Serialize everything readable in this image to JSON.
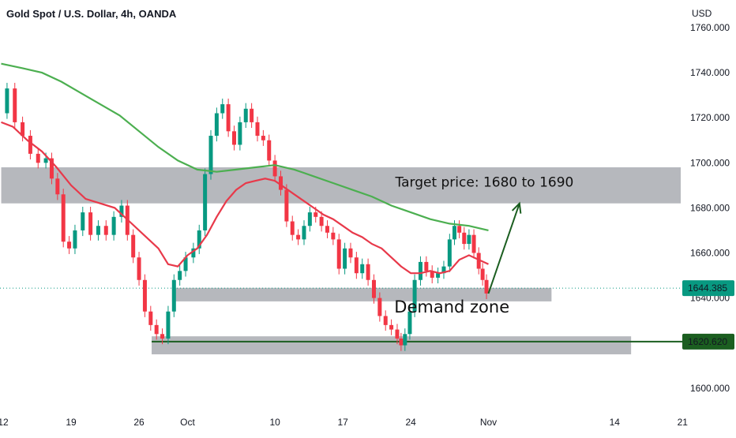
{
  "header": {
    "title": "Gold Spot / U.S. Dollar, 4h, OANDA"
  },
  "colors": {
    "up": "#089981",
    "down": "#f23645",
    "ma_fast": "#e8394a",
    "ma_slow": "#4caf50",
    "zone": "#a9acb1",
    "support": "#1b5e20",
    "last_price_tag": "#089981",
    "support_tag": "#1b5e20"
  },
  "chart_data": {
    "type": "line",
    "instrument": "Gold Spot / U.S. Dollar",
    "timeframe": "4h",
    "source": "OANDA",
    "currency_label": "USD",
    "ylim": [
      1590,
      1765
    ],
    "y_ticks": [
      1760,
      1740,
      1720,
      1700,
      1680,
      1660,
      1640,
      1600
    ],
    "y_tick_labels": [
      "1760.000",
      "1740.000",
      "1720.000",
      "1700.000",
      "1680.000",
      "1660.000",
      "1640.000",
      "1600.000"
    ],
    "x_ticks": [
      {
        "label": "12",
        "day": 12
      },
      {
        "label": "19",
        "day": 19
      },
      {
        "label": "26",
        "day": 26
      },
      {
        "label": "Oct",
        "day": 31
      },
      {
        "label": "10",
        "day": 40
      },
      {
        "label": "17",
        "day": 47
      },
      {
        "label": "24",
        "day": 54
      },
      {
        "label": "Nov",
        "day": 62
      },
      {
        "label": "14",
        "day": 75
      },
      {
        "label": "21",
        "day": 82
      }
    ],
    "x_range_days": [
      12,
      82
    ],
    "price_series": {
      "name": "Price",
      "points": [
        [
          11.8,
          1722
        ],
        [
          12.4,
          1733
        ],
        [
          13.2,
          1718
        ],
        [
          14.0,
          1712
        ],
        [
          14.8,
          1704
        ],
        [
          15.6,
          1700
        ],
        [
          16.4,
          1702
        ],
        [
          17.0,
          1693
        ],
        [
          17.6,
          1686
        ],
        [
          18.2,
          1665
        ],
        [
          18.8,
          1662
        ],
        [
          19.4,
          1670
        ],
        [
          20.2,
          1678
        ],
        [
          21.0,
          1668
        ],
        [
          21.8,
          1672
        ],
        [
          22.6,
          1668
        ],
        [
          23.4,
          1676
        ],
        [
          24.2,
          1681
        ],
        [
          24.8,
          1668
        ],
        [
          25.4,
          1658
        ],
        [
          26.0,
          1648
        ],
        [
          26.6,
          1634
        ],
        [
          27.2,
          1628
        ],
        [
          27.8,
          1624
        ],
        [
          28.4,
          1622
        ],
        [
          29.0,
          1634
        ],
        [
          29.6,
          1648
        ],
        [
          30.2,
          1652
        ],
        [
          30.8,
          1658
        ],
        [
          31.6,
          1662
        ],
        [
          32.2,
          1670
        ],
        [
          32.8,
          1695
        ],
        [
          33.4,
          1712
        ],
        [
          34.0,
          1722
        ],
        [
          34.6,
          1726
        ],
        [
          35.2,
          1714
        ],
        [
          35.8,
          1708
        ],
        [
          36.4,
          1718
        ],
        [
          37.0,
          1724
        ],
        [
          37.6,
          1718
        ],
        [
          38.2,
          1712
        ],
        [
          38.8,
          1710
        ],
        [
          39.4,
          1701
        ],
        [
          40.0,
          1694
        ],
        [
          40.6,
          1688
        ],
        [
          41.2,
          1674
        ],
        [
          41.8,
          1668
        ],
        [
          42.4,
          1666
        ],
        [
          43.0,
          1672
        ],
        [
          43.6,
          1678
        ],
        [
          44.2,
          1676
        ],
        [
          44.8,
          1672
        ],
        [
          45.4,
          1669
        ],
        [
          46.0,
          1666
        ],
        [
          46.6,
          1653
        ],
        [
          47.2,
          1662
        ],
        [
          47.8,
          1658
        ],
        [
          48.4,
          1651
        ],
        [
          49.0,
          1655
        ],
        [
          49.6,
          1648
        ],
        [
          50.2,
          1640
        ],
        [
          50.8,
          1632
        ],
        [
          51.4,
          1628
        ],
        [
          52.0,
          1626
        ],
        [
          52.6,
          1622
        ],
        [
          53.0,
          1619
        ],
        [
          53.4,
          1624
        ],
        [
          53.9,
          1634
        ],
        [
          54.4,
          1648
        ],
        [
          55.0,
          1656
        ],
        [
          55.6,
          1652
        ],
        [
          56.2,
          1649
        ],
        [
          56.8,
          1651
        ],
        [
          57.4,
          1654
        ],
        [
          58.0,
          1666
        ],
        [
          58.5,
          1672
        ],
        [
          59.0,
          1669
        ],
        [
          59.5,
          1664
        ],
        [
          60.0,
          1668
        ],
        [
          60.5,
          1660
        ],
        [
          61.0,
          1653
        ],
        [
          61.4,
          1648
        ],
        [
          61.8,
          1642
        ]
      ]
    },
    "ma_fast": {
      "name": "MA fast",
      "points": [
        [
          11.8,
          1718
        ],
        [
          13.0,
          1716
        ],
        [
          14.5,
          1710
        ],
        [
          16.0,
          1705
        ],
        [
          17.5,
          1698
        ],
        [
          19.0,
          1690
        ],
        [
          20.5,
          1684
        ],
        [
          22.0,
          1682
        ],
        [
          23.5,
          1680
        ],
        [
          25.0,
          1674
        ],
        [
          26.5,
          1668
        ],
        [
          28.0,
          1662
        ],
        [
          29.0,
          1655
        ],
        [
          30.0,
          1654
        ],
        [
          31.0,
          1659
        ],
        [
          32.0,
          1662
        ],
        [
          33.0,
          1668
        ],
        [
          34.0,
          1676
        ],
        [
          35.0,
          1683
        ],
        [
          36.0,
          1688
        ],
        [
          37.0,
          1691
        ],
        [
          38.0,
          1692
        ],
        [
          39.0,
          1693
        ],
        [
          40.0,
          1692
        ],
        [
          41.0,
          1689
        ],
        [
          42.0,
          1686
        ],
        [
          43.0,
          1683
        ],
        [
          44.0,
          1680
        ],
        [
          45.0,
          1677
        ],
        [
          46.0,
          1675
        ],
        [
          47.0,
          1672
        ],
        [
          48.0,
          1669
        ],
        [
          49.0,
          1667
        ],
        [
          50.0,
          1664
        ],
        [
          51.0,
          1662
        ],
        [
          52.0,
          1658
        ],
        [
          53.0,
          1654
        ],
        [
          54.0,
          1651
        ],
        [
          55.0,
          1651
        ],
        [
          56.0,
          1652
        ],
        [
          57.0,
          1651
        ],
        [
          58.0,
          1652
        ],
        [
          59.0,
          1657
        ],
        [
          60.0,
          1659
        ],
        [
          61.0,
          1657
        ],
        [
          62.0,
          1655
        ]
      ]
    },
    "ma_slow": {
      "name": "MA slow",
      "points": [
        [
          11.8,
          1744
        ],
        [
          14.0,
          1742
        ],
        [
          16.0,
          1740
        ],
        [
          18.0,
          1736
        ],
        [
          20.0,
          1731
        ],
        [
          22.0,
          1726
        ],
        [
          24.0,
          1721
        ],
        [
          26.0,
          1714
        ],
        [
          28.0,
          1707
        ],
        [
          30.0,
          1701
        ],
        [
          32.0,
          1697
        ],
        [
          34.0,
          1696
        ],
        [
          36.0,
          1697
        ],
        [
          38.0,
          1698
        ],
        [
          40.0,
          1699
        ],
        [
          42.0,
          1697
        ],
        [
          44.0,
          1694
        ],
        [
          46.0,
          1691
        ],
        [
          48.0,
          1688
        ],
        [
          50.0,
          1685
        ],
        [
          52.0,
          1681
        ],
        [
          54.0,
          1678
        ],
        [
          56.0,
          1675
        ],
        [
          58.0,
          1673
        ],
        [
          60.0,
          1672
        ],
        [
          62.0,
          1670
        ]
      ]
    },
    "zones": [
      {
        "name": "Upper resistance zone",
        "day_from": 11.8,
        "day_to": 84,
        "low": 1682,
        "high": 1698
      },
      {
        "name": "Demand zone",
        "day_from": 29.4,
        "day_to": 68.5,
        "low": 1638.5,
        "high": 1644.5
      },
      {
        "name": "Lower support zone",
        "day_from": 27.3,
        "day_to": 76.7,
        "low": 1615,
        "high": 1623
      }
    ],
    "support_line": {
      "value": 1620.62,
      "day_from": 27.3,
      "day_to": 85.5
    },
    "last_price": 1644.385,
    "projection_arrow": {
      "from": [
        62.0,
        1642
      ],
      "to": [
        65.2,
        1682
      ]
    },
    "annotations": [
      {
        "text": "Target price: 1680 to 1690",
        "day": 52.4,
        "value": 1689.5,
        "size": 17
      },
      {
        "text": "Demand zone",
        "day": 52.3,
        "value": 1633.5,
        "size": 21
      }
    ],
    "price_tags": [
      {
        "label": "1644.385",
        "value": 1644.385
      },
      {
        "label": "1620.620",
        "value": 1620.62
      }
    ]
  }
}
